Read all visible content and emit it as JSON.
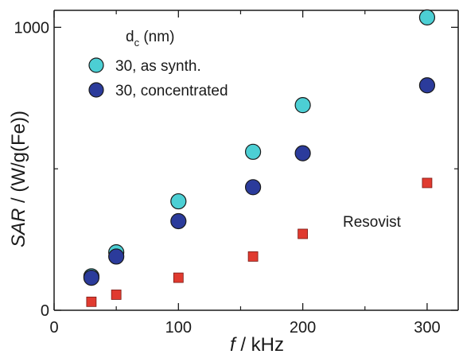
{
  "chart_data": {
    "type": "scatter",
    "xlabel": {
      "var": "f",
      "unit": " / kHz"
    },
    "ylabel": {
      "var": "SAR",
      "unit": " / (W/g(Fe))"
    },
    "xlim": [
      0,
      325
    ],
    "ylim": [
      0,
      1060
    ],
    "xticks": [
      0,
      100,
      200,
      300
    ],
    "xtick_labels": [
      "0",
      "100",
      "200",
      "300"
    ],
    "yticks": [
      0,
      1000
    ],
    "ytick_labels": [
      "0",
      "1000"
    ],
    "minor_xticks": [
      50,
      150,
      250
    ],
    "minor_yticks": [
      500
    ],
    "grid": false,
    "legend_placement": "top-left",
    "legend": {
      "title": {
        "main": "d",
        "sub": "c",
        "rest": " (nm)"
      },
      "entries": [
        "30, as synth.",
        "30, concentrated"
      ]
    },
    "annotations": [
      {
        "text": "Resovist",
        "series": "Resovist"
      }
    ],
    "series": [
      {
        "name": "30, as synth.",
        "marker": "circle",
        "color": "#4ccfd4",
        "points": [
          [
            30,
            120
          ],
          [
            50,
            205
          ],
          [
            100,
            385
          ],
          [
            160,
            560
          ],
          [
            200,
            725
          ],
          [
            300,
            1035
          ]
        ]
      },
      {
        "name": "30, concentrated",
        "marker": "circle",
        "color": "#2b3b9b",
        "points": [
          [
            30,
            115
          ],
          [
            50,
            190
          ],
          [
            100,
            315
          ],
          [
            160,
            435
          ],
          [
            200,
            555
          ],
          [
            300,
            795
          ]
        ]
      },
      {
        "name": "Resovist",
        "marker": "square",
        "color": "#e03a2f",
        "points": [
          [
            30,
            30
          ],
          [
            50,
            55
          ],
          [
            100,
            115
          ],
          [
            160,
            190
          ],
          [
            200,
            270
          ],
          [
            300,
            450
          ]
        ]
      }
    ]
  }
}
